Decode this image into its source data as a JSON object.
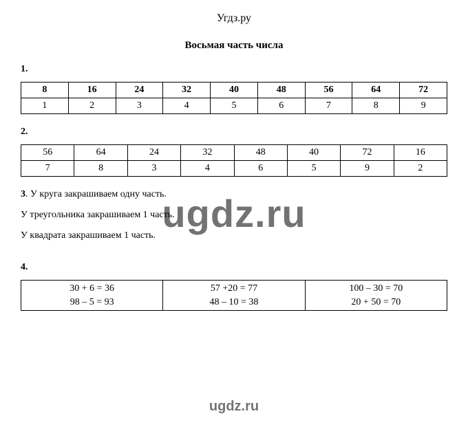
{
  "site": "Угдз.ру",
  "title": "Восьмая часть числа",
  "watermark_big": "ugdz.ru",
  "watermark_small": "ugdz.ru",
  "q1": {
    "num": "1.",
    "row1": [
      "8",
      "16",
      "24",
      "32",
      "40",
      "48",
      "56",
      "64",
      "72"
    ],
    "row2": [
      "1",
      "2",
      "3",
      "4",
      "5",
      "6",
      "7",
      "8",
      "9"
    ]
  },
  "q2": {
    "num": "2.",
    "row1": [
      "56",
      "64",
      "24",
      "32",
      "48",
      "40",
      "72",
      "16"
    ],
    "row2": [
      "7",
      "8",
      "3",
      "4",
      "6",
      "5",
      "9",
      "2"
    ]
  },
  "q3": {
    "num": "3",
    "line1": ".  У круга закрашиваем одну часть.",
    "line2": "У треугольника закрашиваем 1 часть.",
    "line3": "У  квадрата закрашиваем 1 часть."
  },
  "q4": {
    "num": "4.",
    "cells": [
      {
        "a": "30 + 6 = 36",
        "b": "98 – 5 = 93"
      },
      {
        "a": "57 +20 = 77",
        "b": "48 – 10 = 38"
      },
      {
        "a": "100 – 30 = 70",
        "b": "20 + 50 = 70"
      }
    ]
  },
  "colors": {
    "text": "#000000",
    "background": "#ffffff",
    "border": "#000000",
    "watermark": "rgba(0,0,0,0.55)"
  },
  "fonts": {
    "body_family": "Times New Roman",
    "body_size_pt": 11,
    "title_size_pt": 11,
    "watermark_family": "Arial"
  }
}
